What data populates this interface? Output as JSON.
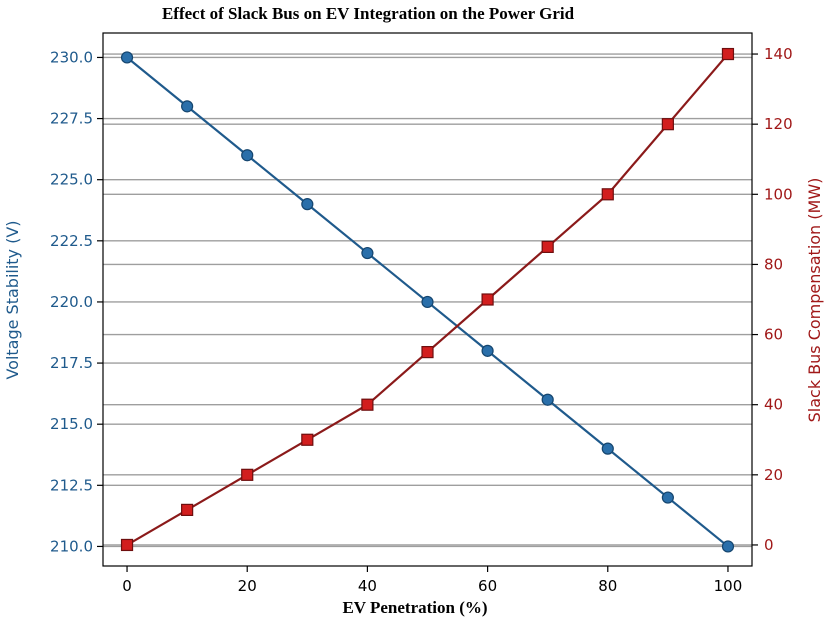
{
  "chart_data": {
    "type": "line",
    "title": "Effect of Slack Bus on EV Integration on the Power Grid",
    "xlabel": "EV Penetration (%)",
    "ylabel_left": "Voltage Stability (V)",
    "ylabel_right": "Slack Bus Compensation (MW)",
    "x": [
      0,
      10,
      20,
      30,
      40,
      50,
      60,
      70,
      80,
      90,
      100
    ],
    "xlim": [
      -4,
      104
    ],
    "x_ticks": [
      "0",
      "20",
      "40",
      "60",
      "80",
      "100"
    ],
    "x_tick_values": [
      0,
      20,
      40,
      60,
      80,
      100
    ],
    "ylim_left": [
      209.2,
      231.0
    ],
    "y_ticks_left": [
      "210.0",
      "212.5",
      "215.0",
      "217.5",
      "220.0",
      "222.5",
      "225.0",
      "227.5",
      "230.0"
    ],
    "y_tick_values_left": [
      210.0,
      212.5,
      215.0,
      217.5,
      220.0,
      222.5,
      225.0,
      227.5,
      230.0
    ],
    "ylim_right": [
      -6,
      146
    ],
    "y_ticks_right": [
      "0",
      "20",
      "40",
      "60",
      "80",
      "100",
      "120",
      "140"
    ],
    "y_tick_values_right": [
      0,
      20,
      40,
      60,
      80,
      100,
      120,
      140
    ],
    "grid": "horizontal",
    "series": [
      {
        "axis": "left",
        "marker": "circle",
        "color": "#1f5a8c",
        "values": [
          230,
          228,
          226,
          224,
          222,
          220,
          218,
          216,
          214,
          212,
          210
        ]
      },
      {
        "axis": "right",
        "marker": "square",
        "color": "#8b1a1a",
        "values": [
          0,
          10,
          20,
          30,
          40,
          55,
          70,
          85,
          100,
          120,
          140
        ]
      }
    ],
    "colors": {
      "left_axis": "#1f5a8c",
      "right_axis": "#a01818",
      "grid": "#9e9e9e",
      "marker_left_fill": "#2a6faa",
      "marker_right_fill": "#d21e1e"
    }
  }
}
